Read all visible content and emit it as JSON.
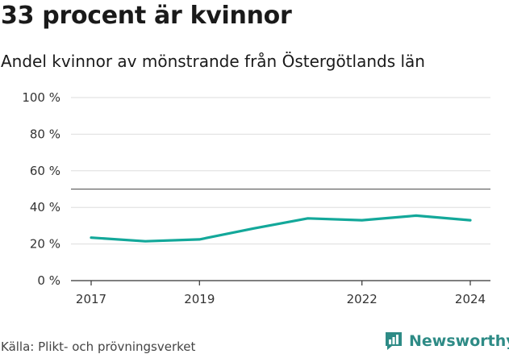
{
  "title": "33 procent är kvinnor",
  "subtitle": "Andel kvinnor av mönstrande från Östergötlands län",
  "source": "Källa: Plikt- och prövningsverket",
  "brand": "Newsworthy",
  "colors": {
    "line": "#13a89a",
    "grid": "#dddddd",
    "reference": "#666666",
    "brand": "#2e8b86"
  },
  "chart_data": {
    "type": "line",
    "title": "33 procent är kvinnor",
    "subtitle": "Andel kvinnor av mönstrande från Östergötlands län",
    "xlabel": "",
    "ylabel": "",
    "x": [
      2017,
      2018,
      2019,
      2020,
      2021,
      2022,
      2023,
      2024
    ],
    "x_ticks": [
      2017,
      2019,
      2022,
      2024
    ],
    "x_tick_labels": [
      "2017",
      "2019",
      "2022",
      "2024"
    ],
    "xlim": [
      2017,
      2024
    ],
    "ylim": [
      0,
      100
    ],
    "y_ticks": [
      0,
      20,
      40,
      60,
      80,
      100
    ],
    "y_tick_labels": [
      "0 %",
      "20 %",
      "40 %",
      "60 %",
      "80 %",
      "100 %"
    ],
    "reference_line": 50,
    "grid": true,
    "series": [
      {
        "name": "Andel kvinnor",
        "values": [
          23.5,
          21.5,
          22.5,
          28.5,
          34,
          33,
          35.5,
          33
        ]
      }
    ]
  }
}
